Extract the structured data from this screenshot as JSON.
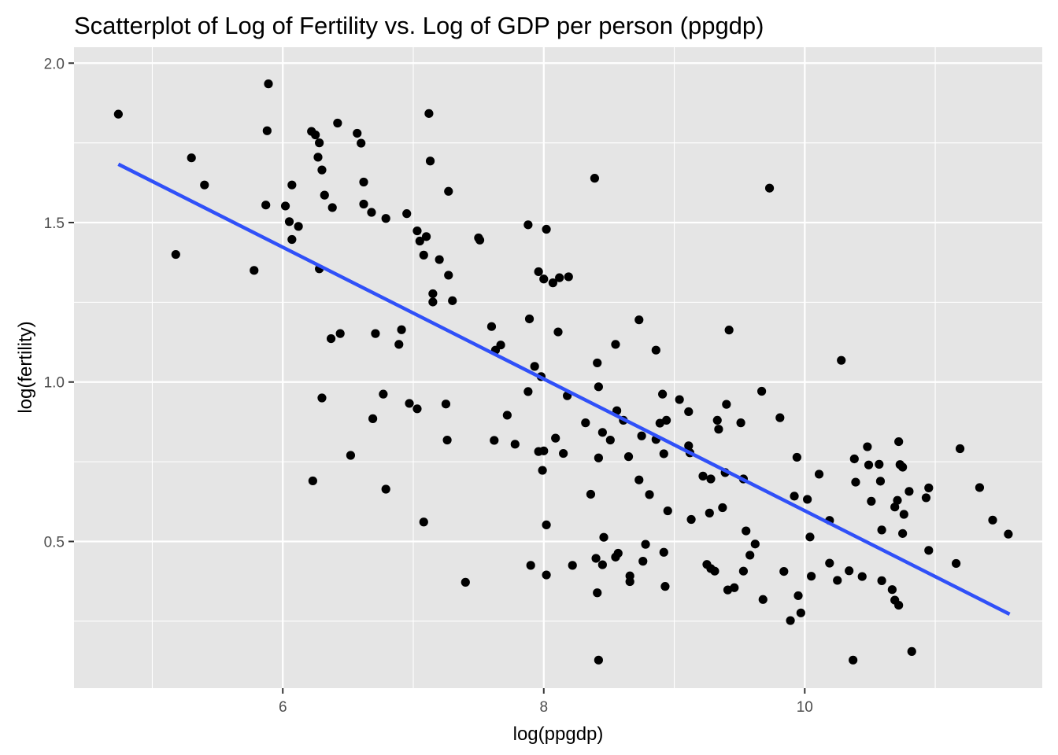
{
  "chart_data": {
    "type": "scatter",
    "title": "Scatterplot of Log of Fertility vs. Log of GDP per person (ppgdp)",
    "xlabel": "log(ppgdp)",
    "ylabel": "log(fertility)",
    "xlim": [
      4.4,
      11.82
    ],
    "ylim": [
      0.04,
      2.05
    ],
    "x_ticks": [
      6,
      8,
      10
    ],
    "x_tick_labels": [
      "6",
      "8",
      "10"
    ],
    "y_ticks": [
      0.5,
      1.0,
      1.5,
      2.0
    ],
    "y_tick_labels": [
      "0.5",
      "1.0",
      "1.5",
      "2.0"
    ],
    "grid": true,
    "colors": {
      "panel_background": "#e5e5e5",
      "grid": "#ffffff",
      "points": "#000000",
      "fit_line": "#3050f8"
    },
    "fit_line": {
      "x": [
        4.74,
        11.57
      ],
      "y": [
        1.683,
        0.272
      ]
    },
    "points": [
      [
        4.74,
        1.84
      ],
      [
        5.3,
        1.703
      ],
      [
        5.18,
        1.4
      ],
      [
        5.4,
        1.618
      ],
      [
        5.78,
        1.35
      ],
      [
        5.87,
        1.555
      ],
      [
        5.88,
        1.788
      ],
      [
        5.89,
        1.935
      ],
      [
        6.02,
        1.552
      ],
      [
        6.05,
        1.503
      ],
      [
        6.07,
        1.447
      ],
      [
        6.07,
        1.618
      ],
      [
        6.12,
        1.488
      ],
      [
        6.22,
        1.786
      ],
      [
        6.25,
        1.775
      ],
      [
        6.27,
        1.705
      ],
      [
        6.28,
        1.75
      ],
      [
        6.3,
        1.665
      ],
      [
        6.32,
        1.586
      ],
      [
        6.38,
        1.547
      ],
      [
        6.42,
        1.812
      ],
      [
        6.28,
        1.355
      ],
      [
        6.3,
        0.95
      ],
      [
        6.37,
        1.136
      ],
      [
        6.44,
        1.152
      ],
      [
        6.23,
        0.69
      ],
      [
        6.52,
        0.77
      ],
      [
        6.57,
        1.78
      ],
      [
        6.6,
        1.749
      ],
      [
        6.62,
        1.627
      ],
      [
        6.62,
        1.558
      ],
      [
        6.68,
        1.532
      ],
      [
        6.71,
        1.152
      ],
      [
        6.69,
        0.885
      ],
      [
        6.77,
        0.962
      ],
      [
        6.79,
        1.513
      ],
      [
        6.79,
        0.664
      ],
      [
        6.89,
        1.118
      ],
      [
        6.91,
        1.164
      ],
      [
        6.95,
        1.528
      ],
      [
        6.97,
        0.933
      ],
      [
        7.03,
        1.474
      ],
      [
        7.03,
        0.916
      ],
      [
        7.05,
        1.442
      ],
      [
        7.08,
        1.398
      ],
      [
        7.1,
        1.456
      ],
      [
        7.08,
        0.561
      ],
      [
        7.12,
        1.842
      ],
      [
        7.13,
        1.693
      ],
      [
        7.15,
        1.277
      ],
      [
        7.15,
        1.251
      ],
      [
        7.2,
        1.384
      ],
      [
        7.25,
        0.931
      ],
      [
        7.27,
        1.335
      ],
      [
        7.27,
        1.598
      ],
      [
        7.26,
        0.818
      ],
      [
        7.3,
        1.255
      ],
      [
        7.4,
        0.372
      ],
      [
        7.5,
        1.452
      ],
      [
        7.51,
        1.445
      ],
      [
        7.6,
        1.174
      ],
      [
        7.62,
        0.817
      ],
      [
        7.63,
        1.1
      ],
      [
        7.67,
        1.116
      ],
      [
        7.72,
        0.896
      ],
      [
        7.78,
        0.805
      ],
      [
        7.88,
        1.493
      ],
      [
        7.88,
        0.97
      ],
      [
        7.89,
        1.198
      ],
      [
        7.9,
        0.425
      ],
      [
        7.93,
        1.049
      ],
      [
        7.96,
        1.346
      ],
      [
        7.96,
        0.782
      ],
      [
        7.98,
        1.017
      ],
      [
        7.99,
        0.723
      ],
      [
        8.0,
        1.323
      ],
      [
        8.0,
        0.784
      ],
      [
        8.02,
        1.479
      ],
      [
        8.02,
        0.552
      ],
      [
        8.02,
        0.395
      ],
      [
        8.07,
        1.311
      ],
      [
        8.09,
        0.824
      ],
      [
        8.11,
        1.157
      ],
      [
        8.12,
        1.327
      ],
      [
        8.15,
        0.776
      ],
      [
        8.18,
        0.957
      ],
      [
        8.19,
        1.33
      ],
      [
        8.22,
        0.425
      ],
      [
        8.32,
        0.872
      ],
      [
        8.36,
        0.648
      ],
      [
        8.39,
        1.639
      ],
      [
        8.4,
        0.447
      ],
      [
        8.41,
        1.06
      ],
      [
        8.41,
        0.339
      ],
      [
        8.42,
        0.985
      ],
      [
        8.42,
        0.762
      ],
      [
        8.42,
        0.128
      ],
      [
        8.45,
        0.842
      ],
      [
        8.45,
        0.427
      ],
      [
        8.46,
        0.513
      ],
      [
        8.51,
        0.818
      ],
      [
        8.55,
        1.118
      ],
      [
        8.55,
        0.451
      ],
      [
        8.56,
        0.91
      ],
      [
        8.57,
        0.463
      ],
      [
        8.61,
        0.88
      ],
      [
        8.65,
        0.766
      ],
      [
        8.66,
        0.392
      ],
      [
        8.66,
        0.374
      ],
      [
        8.73,
        1.195
      ],
      [
        8.73,
        0.693
      ],
      [
        8.75,
        0.831
      ],
      [
        8.76,
        0.438
      ],
      [
        8.78,
        0.491
      ],
      [
        8.81,
        0.647
      ],
      [
        8.86,
        1.1
      ],
      [
        8.86,
        0.82
      ],
      [
        8.89,
        0.871
      ],
      [
        8.91,
        0.962
      ],
      [
        8.92,
        0.775
      ],
      [
        8.92,
        0.466
      ],
      [
        8.93,
        0.359
      ],
      [
        8.94,
        0.88
      ],
      [
        8.95,
        0.596
      ],
      [
        9.04,
        0.945
      ],
      [
        9.11,
        0.907
      ],
      [
        9.11,
        0.8
      ],
      [
        9.12,
        0.778
      ],
      [
        9.13,
        0.569
      ],
      [
        9.22,
        0.705
      ],
      [
        9.25,
        0.428
      ],
      [
        9.27,
        0.589
      ],
      [
        9.28,
        0.696
      ],
      [
        9.28,
        0.415
      ],
      [
        9.31,
        0.407
      ],
      [
        9.33,
        0.88
      ],
      [
        9.34,
        0.852
      ],
      [
        9.37,
        0.606
      ],
      [
        9.39,
        0.716
      ],
      [
        9.4,
        0.93
      ],
      [
        9.42,
        1.163
      ],
      [
        9.41,
        0.348
      ],
      [
        9.46,
        0.355
      ],
      [
        9.51,
        0.872
      ],
      [
        9.53,
        0.696
      ],
      [
        9.53,
        0.407
      ],
      [
        9.55,
        0.533
      ],
      [
        9.58,
        0.457
      ],
      [
        9.62,
        0.492
      ],
      [
        9.67,
        0.971
      ],
      [
        9.68,
        0.318
      ],
      [
        9.73,
        1.608
      ],
      [
        9.81,
        0.888
      ],
      [
        9.84,
        0.406
      ],
      [
        9.89,
        0.252
      ],
      [
        9.92,
        0.642
      ],
      [
        9.94,
        0.764
      ],
      [
        9.95,
        0.33
      ],
      [
        9.97,
        0.276
      ],
      [
        10.02,
        0.632
      ],
      [
        10.04,
        0.514
      ],
      [
        10.05,
        0.391
      ],
      [
        10.11,
        0.711
      ],
      [
        10.19,
        0.566
      ],
      [
        10.19,
        0.432
      ],
      [
        10.25,
        0.378
      ],
      [
        10.28,
        1.068
      ],
      [
        10.34,
        0.408
      ],
      [
        10.38,
        0.759
      ],
      [
        10.39,
        0.686
      ],
      [
        10.37,
        0.128
      ],
      [
        10.44,
        0.39
      ],
      [
        10.48,
        0.797
      ],
      [
        10.49,
        0.74
      ],
      [
        10.51,
        0.626
      ],
      [
        10.57,
        0.742
      ],
      [
        10.58,
        0.689
      ],
      [
        10.59,
        0.536
      ],
      [
        10.59,
        0.377
      ],
      [
        10.67,
        0.349
      ],
      [
        10.69,
        0.608
      ],
      [
        10.69,
        0.316
      ],
      [
        10.71,
        0.629
      ],
      [
        10.72,
        0.813
      ],
      [
        10.72,
        0.3
      ],
      [
        10.73,
        0.741
      ],
      [
        10.75,
        0.733
      ],
      [
        10.75,
        0.525
      ],
      [
        10.76,
        0.585
      ],
      [
        10.8,
        0.657
      ],
      [
        10.82,
        0.155
      ],
      [
        10.93,
        0.637
      ],
      [
        10.95,
        0.668
      ],
      [
        10.95,
        0.472
      ],
      [
        11.16,
        0.431
      ],
      [
        11.19,
        0.791
      ],
      [
        11.34,
        0.669
      ],
      [
        11.44,
        0.567
      ],
      [
        11.56,
        0.523
      ]
    ]
  }
}
